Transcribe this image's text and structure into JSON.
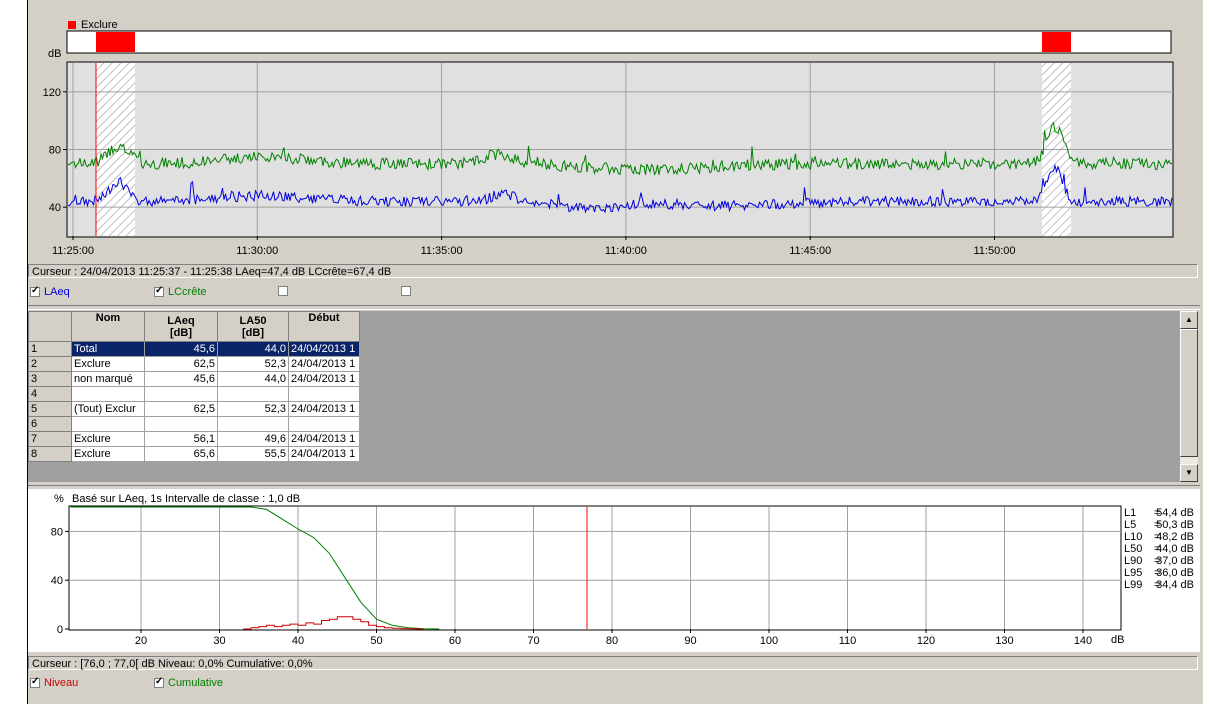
{
  "colors": {
    "laeq": "#0000dd",
    "lcrete": "#008000",
    "exclude": "#ff0000",
    "niveau": "#cc0000",
    "cumulative": "#008000",
    "selection": "#0a246a"
  },
  "top_chart": {
    "legend_label": "Exclure",
    "y_unit": "dB",
    "y_ticks": [
      "120",
      "80",
      "40"
    ],
    "x_ticks": [
      "11:25:00",
      "11:30:00",
      "11:35:00",
      "11:40:00",
      "11:45:00",
      "11:50:00"
    ],
    "cursor_text": "Curseur : 24/04/2013 11:25:37 - 11:25:38  LAeq=47,4 dB  LCcrête=67,4 dB",
    "checkboxes": [
      {
        "label": "LAeq",
        "checked": true
      },
      {
        "label": "LCcrête",
        "checked": true
      },
      {
        "label": "",
        "checked": false
      },
      {
        "label": "",
        "checked": false
      }
    ]
  },
  "table": {
    "headers": [
      {
        "line1": "Nom",
        "line2": ""
      },
      {
        "line1": "LAeq",
        "line2": "[dB]"
      },
      {
        "line1": "LA50",
        "line2": "[dB]"
      },
      {
        "line1": "Début",
        "line2": ""
      }
    ],
    "rows": [
      {
        "n": "1",
        "nom": "Total",
        "laeq": "45,6",
        "la50": "44,0",
        "debut": "24/04/2013 1",
        "selected": true
      },
      {
        "n": "2",
        "nom": "Exclure",
        "laeq": "62,5",
        "la50": "52,3",
        "debut": "24/04/2013 1"
      },
      {
        "n": "3",
        "nom": "non marqué",
        "laeq": "45,6",
        "la50": "44,0",
        "debut": "24/04/2013 1"
      },
      {
        "n": "4",
        "nom": "",
        "laeq": "",
        "la50": "",
        "debut": ""
      },
      {
        "n": "5",
        "nom": "(Tout) Exclur",
        "laeq": "62,5",
        "la50": "52,3",
        "debut": "24/04/2013 1"
      },
      {
        "n": "6",
        "nom": "",
        "laeq": "",
        "la50": "",
        "debut": ""
      },
      {
        "n": "7",
        "nom": "Exclure",
        "laeq": "56,1",
        "la50": "49,6",
        "debut": "24/04/2013 1"
      },
      {
        "n": "8",
        "nom": "Exclure",
        "laeq": "65,6",
        "la50": "55,5",
        "debut": "24/04/2013 1"
      }
    ]
  },
  "dist_chart": {
    "y_unit": "%",
    "subtitle": "Basé sur LAeq, 1s Intervalle de classe : 1,0 dB",
    "y_ticks": [
      "80",
      "40",
      "0"
    ],
    "x_ticks": [
      "20",
      "30",
      "40",
      "50",
      "60",
      "70",
      "80",
      "90",
      "100",
      "110",
      "120",
      "130",
      "140"
    ],
    "x_unit": "dB",
    "percentiles": [
      {
        "name": "L1",
        "value": "54,4 dB"
      },
      {
        "name": "L5",
        "value": "50,3 dB"
      },
      {
        "name": "L10",
        "value": "48,2 dB"
      },
      {
        "name": "L50",
        "value": "44,0 dB"
      },
      {
        "name": "L90",
        "value": "37,0 dB"
      },
      {
        "name": "L95",
        "value": "36,0 dB"
      },
      {
        "name": "L99",
        "value": "34,4 dB"
      }
    ],
    "cursor_text": "Curseur : [76,0 ; 77,0[ dB   Niveau: 0,0%   Cumulative: 0,0%",
    "checkboxes": [
      {
        "label": "Niveau",
        "checked": true
      },
      {
        "label": "Cumulative",
        "checked": true
      }
    ]
  }
}
